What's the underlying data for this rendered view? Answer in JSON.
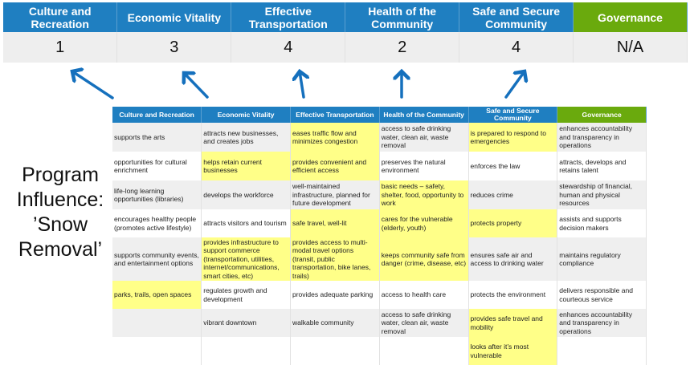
{
  "scores": {
    "headers": [
      "Culture and Recreation",
      "Economic Vitality",
      "Effective Transportation",
      "Health of the Community",
      "Safe and Secure Community",
      "Governance"
    ],
    "values": [
      "1",
      "3",
      "4",
      "2",
      "4",
      "N/A"
    ]
  },
  "label": {
    "line1": "Program",
    "line2": "Influence:",
    "line3": "’Snow",
    "line4": "Removal’"
  },
  "matrix": {
    "headers": [
      "Culture and Recreation",
      "Economic Vitality",
      "Effective Transportation",
      "Health of the Community",
      "Safe and Secure Community",
      "Governance"
    ],
    "rows": [
      [
        "supports the arts",
        "attracts new businesses, and creates jobs",
        "eases traffic flow and minimizes congestion",
        "access to safe drinking water, clean air, waste removal",
        "is prepared to respond to emergencies",
        "enhances accountability and transparency in operations"
      ],
      [
        "opportunities for cultural enrichment",
        "helps retain current businesses",
        "provides convenient and efficient access",
        "preserves the natural environment",
        "enforces the law",
        "attracts, develops and retains talent"
      ],
      [
        "life-long learning opportunities (libraries)",
        "develops the workforce",
        "well-maintained infrastructure, planned for future development",
        "basic needs – safety, shelter, food, opportunity to work",
        "reduces crime",
        "stewardship of financial, human and physical resources"
      ],
      [
        "encourages healthy people (promotes active lifestyle)",
        "attracts visitors and tourism",
        "safe travel, well-lit",
        "cares for the vulnerable (elderly, youth)",
        "protects property",
        "assists and supports decision makers"
      ],
      [
        "supports community events, and entertainment options",
        "provides infrastructure to support commerce (transportation, utilities, internet/communications, smart cities, etc)",
        "provides access to multi-modal travel options (transit, public transportation, bike lanes, trails)",
        "keeps community safe from danger (crime, disease, etc)",
        "ensures safe air and access to drinking water",
        "maintains regulatory compliance"
      ],
      [
        "parks, trails, open spaces",
        "regulates growth and development",
        "provides adequate parking",
        "access to health care",
        "protects the environment",
        "delivers responsible and courteous service"
      ],
      [
        "",
        "vibrant downtown",
        "walkable community",
        "access to safe drinking water, clean air, waste removal",
        "provides safe travel and mobility",
        "enhances accountability and transparency in operations"
      ],
      [
        "",
        "",
        "",
        "",
        "looks after it’s most vulnerable",
        ""
      ]
    ],
    "highlighted": [
      [
        0,
        2
      ],
      [
        0,
        4
      ],
      [
        1,
        1
      ],
      [
        1,
        2
      ],
      [
        2,
        3
      ],
      [
        3,
        2
      ],
      [
        3,
        3
      ],
      [
        3,
        4
      ],
      [
        4,
        1
      ],
      [
        4,
        2
      ],
      [
        4,
        3
      ],
      [
        5,
        0
      ],
      [
        6,
        4
      ],
      [
        7,
        4
      ]
    ]
  },
  "colors": {
    "header_blue": "#1f7fc1",
    "governance_green": "#6aaa0d",
    "highlight": "#ffff88",
    "arrow": "#1570bd"
  }
}
